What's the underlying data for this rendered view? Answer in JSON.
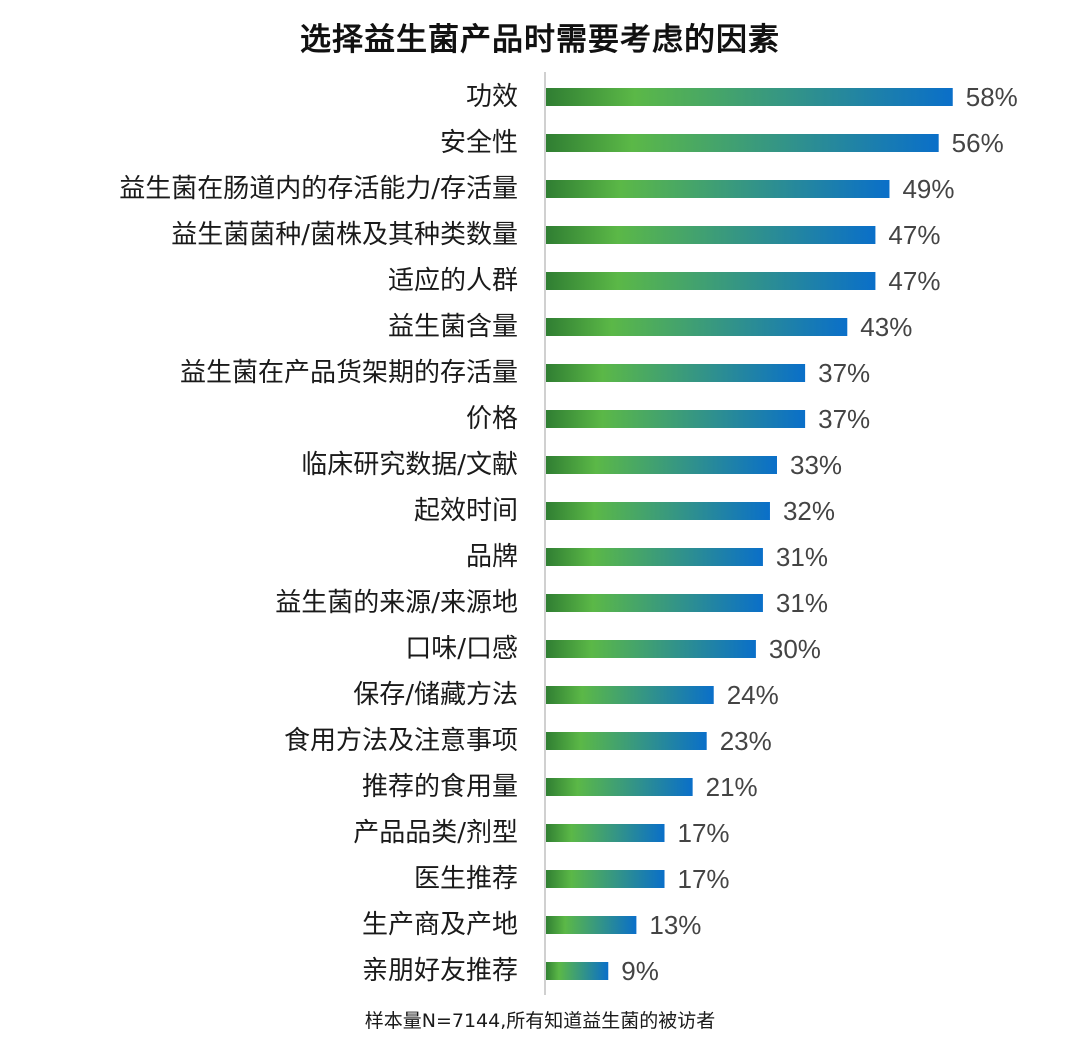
{
  "chart_data": {
    "type": "bar",
    "orientation": "horizontal",
    "title": "选择益生菌产品时需要考虑的因素",
    "note": "样本量N=7144,所有知道益生菌的被访者",
    "categories": [
      "功效",
      "安全性",
      "益生菌在肠道内的存活能力/存活量",
      "益生菌菌种/菌株及其种类数量",
      "适应的人群",
      "益生菌含量",
      "益生菌在产品货架期的存活量",
      "价格",
      "临床研究数据/文献",
      "起效时间",
      "品牌",
      "益生菌的来源/来源地",
      "口味/口感",
      "保存/储藏方法",
      "食用方法及注意事项",
      "推荐的食用量",
      "产品品类/剂型",
      "医生推荐",
      "生产商及产地",
      "亲朋好友推荐"
    ],
    "values": [
      58,
      56,
      49,
      47,
      47,
      43,
      37,
      37,
      33,
      32,
      31,
      31,
      30,
      24,
      23,
      21,
      17,
      17,
      13,
      9
    ],
    "value_labels": [
      "58%",
      "56%",
      "49%",
      "47%",
      "47%",
      "43%",
      "37%",
      "37%",
      "33%",
      "32%",
      "31%",
      "31%",
      "30%",
      "24%",
      "23%",
      "21%",
      "17%",
      "17%",
      "13%",
      "9%"
    ],
    "value_unit": "%",
    "xlim": [
      0,
      60
    ],
    "grid": false,
    "colors": {
      "bar_gradient_start": "#2f7d32",
      "bar_gradient_mid": "#5bb847",
      "bar_gradient_end": "#0a6fc9",
      "axis_line": "#d0d0d0",
      "label_text": "#1a1a1a",
      "value_text": "#444444"
    }
  }
}
